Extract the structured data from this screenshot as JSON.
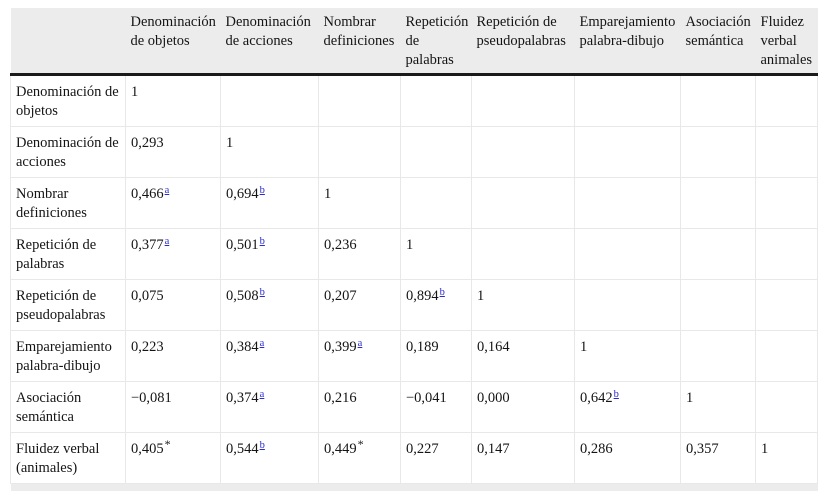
{
  "colors": {
    "header_bg": "#ececec",
    "heavy_rule": "#1b1b1b",
    "grid_line": "#e8e8e8",
    "footnote_link": "#2a2ad5",
    "text": "#141414"
  },
  "table": {
    "column_headers": [
      "",
      "Denominación de objetos",
      "Denominación de acciones",
      "Nombrar definiciones",
      "Repetición de palabras",
      "Repetición de pseudopalabras",
      "Emparejamiento palabra-dibujo",
      "Asociación semántica",
      "Fluidez verbal animales"
    ],
    "rows": [
      {
        "label": "Denominación de objetos",
        "cells": [
          {
            "v": "1"
          },
          {
            "v": ""
          },
          {
            "v": ""
          },
          {
            "v": ""
          },
          {
            "v": ""
          },
          {
            "v": ""
          },
          {
            "v": ""
          },
          {
            "v": ""
          }
        ]
      },
      {
        "label": "Denominación de acciones",
        "cells": [
          {
            "v": "0,293"
          },
          {
            "v": "1"
          },
          {
            "v": ""
          },
          {
            "v": ""
          },
          {
            "v": ""
          },
          {
            "v": ""
          },
          {
            "v": ""
          },
          {
            "v": ""
          }
        ]
      },
      {
        "label": "Nombrar definiciones",
        "cells": [
          {
            "v": "0,466",
            "sup": "a"
          },
          {
            "v": "0,694",
            "sup": "b"
          },
          {
            "v": "1"
          },
          {
            "v": ""
          },
          {
            "v": ""
          },
          {
            "v": ""
          },
          {
            "v": ""
          },
          {
            "v": ""
          }
        ]
      },
      {
        "label": "Repetición de palabras",
        "cells": [
          {
            "v": "0,377",
            "sup": "a"
          },
          {
            "v": "0,501",
            "sup": "b"
          },
          {
            "v": "0,236"
          },
          {
            "v": "1"
          },
          {
            "v": ""
          },
          {
            "v": ""
          },
          {
            "v": ""
          },
          {
            "v": ""
          }
        ]
      },
      {
        "label": "Repetición de pseudopalabras",
        "cells": [
          {
            "v": "0,075"
          },
          {
            "v": "0,508",
            "sup": "b"
          },
          {
            "v": "0,207"
          },
          {
            "v": "0,894",
            "sup": "b"
          },
          {
            "v": "1"
          },
          {
            "v": ""
          },
          {
            "v": ""
          },
          {
            "v": ""
          }
        ]
      },
      {
        "label": "Emparejamiento palabra-dibujo",
        "cells": [
          {
            "v": "0,223"
          },
          {
            "v": "0,384",
            "sup": "a"
          },
          {
            "v": "0,399",
            "sup": "a"
          },
          {
            "v": "0,189"
          },
          {
            "v": "0,164"
          },
          {
            "v": "1"
          },
          {
            "v": ""
          },
          {
            "v": ""
          }
        ]
      },
      {
        "label": "Asociación semántica",
        "cells": [
          {
            "v": "−0,081"
          },
          {
            "v": "0,374",
            "sup": "a"
          },
          {
            "v": "0,216"
          },
          {
            "v": "−0,041"
          },
          {
            "v": "0,000"
          },
          {
            "v": "0,642",
            "sup": "b"
          },
          {
            "v": "1"
          },
          {
            "v": ""
          }
        ]
      },
      {
        "label": "Fluidez verbal (animales)",
        "cells": [
          {
            "v": "0,405",
            "sup": "*"
          },
          {
            "v": "0,544",
            "sup": "b"
          },
          {
            "v": "0,449",
            "sup": "*"
          },
          {
            "v": "0,227"
          },
          {
            "v": "0,147"
          },
          {
            "v": "0,286"
          },
          {
            "v": "0,357"
          },
          {
            "v": "1"
          }
        ]
      }
    ]
  },
  "chart_data": {
    "type": "table",
    "title": "",
    "columns": [
      "Denominación de objetos",
      "Denominación de acciones",
      "Nombrar definiciones",
      "Repetición de palabras",
      "Repetición de pseudopalabras",
      "Emparejamiento palabra-dibujo",
      "Asociación semántica",
      "Fluidez verbal animales"
    ],
    "row_labels": [
      "Denominación de objetos",
      "Denominación de acciones",
      "Nombrar definiciones",
      "Repetición de palabras",
      "Repetición de pseudopalabras",
      "Emparejamiento palabra-dibujo",
      "Asociación semántica",
      "Fluidez verbal (animales)"
    ],
    "values": [
      [
        "1",
        "",
        "",
        "",
        "",
        "",
        "",
        ""
      ],
      [
        "0,293",
        "1",
        "",
        "",
        "",
        "",
        "",
        ""
      ],
      [
        "0,466a",
        "0,694b",
        "1",
        "",
        "",
        "",
        "",
        ""
      ],
      [
        "0,377a",
        "0,501b",
        "0,236",
        "1",
        "",
        "",
        "",
        ""
      ],
      [
        "0,075",
        "0,508b",
        "0,207",
        "0,894b",
        "1",
        "",
        "",
        ""
      ],
      [
        "0,223",
        "0,384a",
        "0,399a",
        "0,189",
        "0,164",
        "1",
        "",
        ""
      ],
      [
        "−0,081",
        "0,374a",
        "0,216",
        "−0,041",
        "0,000",
        "0,642b",
        "1",
        ""
      ],
      [
        "0,405*",
        "0,544b",
        "0,449*",
        "0,227",
        "0,147",
        "0,286",
        "0,357",
        "1"
      ]
    ]
  }
}
